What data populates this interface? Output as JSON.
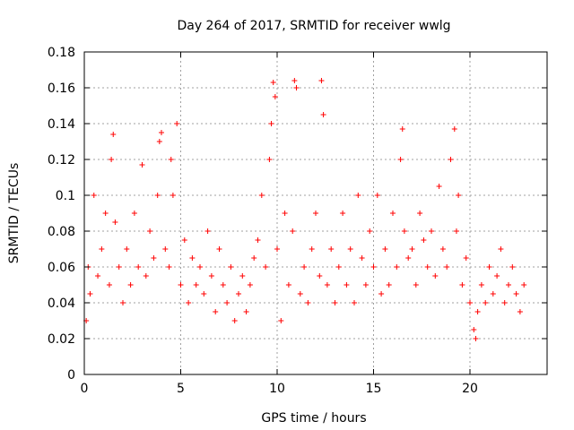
{
  "chart_data": {
    "type": "scatter",
    "title": "Day 264 of 2017, SRMTID for receiver wwlg",
    "xlabel": "GPS time / hours",
    "ylabel": "SRMTID / TECUs",
    "xlim": [
      0,
      24
    ],
    "ylim": [
      0,
      0.18
    ],
    "xticks": [
      0,
      5,
      10,
      15,
      20
    ],
    "xtick_labels": [
      "0",
      "5",
      "10",
      "15",
      "20"
    ],
    "yticks": [
      0,
      0.02,
      0.04,
      0.06,
      0.08,
      0.1,
      0.12,
      0.14,
      0.16,
      0.18
    ],
    "ytick_labels": [
      "0",
      "0.02",
      "0.04",
      "0.06",
      "0.08",
      "0.1",
      "0.12",
      "0.14",
      "0.16",
      "0.18"
    ],
    "grid": true,
    "marker": "+",
    "color": "#ff0000",
    "series": [
      {
        "name": "SRMTID",
        "x": [
          0.1,
          0.2,
          0.3,
          0.5,
          0.7,
          0.9,
          1.1,
          1.3,
          1.4,
          1.5,
          1.6,
          1.8,
          2.0,
          2.2,
          2.4,
          2.6,
          2.8,
          3.0,
          3.2,
          3.4,
          3.6,
          3.8,
          3.9,
          4.0,
          4.2,
          4.4,
          4.5,
          4.6,
          4.8,
          5.0,
          5.2,
          5.4,
          5.6,
          5.8,
          6.0,
          6.2,
          6.4,
          6.6,
          6.8,
          7.0,
          7.2,
          7.4,
          7.6,
          7.8,
          8.0,
          8.2,
          8.4,
          8.6,
          8.8,
          9.0,
          9.2,
          9.4,
          9.6,
          9.7,
          9.8,
          9.9,
          10.0,
          10.2,
          10.4,
          10.6,
          10.8,
          10.9,
          11.0,
          11.2,
          11.4,
          11.6,
          11.8,
          12.0,
          12.2,
          12.3,
          12.4,
          12.6,
          12.8,
          13.0,
          13.2,
          13.4,
          13.6,
          13.8,
          14.0,
          14.2,
          14.4,
          14.6,
          14.8,
          15.0,
          15.2,
          15.4,
          15.6,
          15.8,
          16.0,
          16.2,
          16.4,
          16.5,
          16.6,
          16.8,
          17.0,
          17.2,
          17.4,
          17.6,
          17.8,
          18.0,
          18.2,
          18.4,
          18.6,
          18.8,
          19.0,
          19.2,
          19.3,
          19.4,
          19.6,
          19.8,
          20.0,
          20.2,
          20.3,
          20.4,
          20.6,
          20.8,
          21.0,
          21.2,
          21.4,
          21.6,
          21.8,
          22.0,
          22.2,
          22.4,
          22.6,
          22.8
        ],
        "y": [
          0.03,
          0.06,
          0.045,
          0.1,
          0.055,
          0.07,
          0.09,
          0.05,
          0.12,
          0.134,
          0.085,
          0.06,
          0.04,
          0.07,
          0.05,
          0.09,
          0.06,
          0.117,
          0.055,
          0.08,
          0.065,
          0.1,
          0.13,
          0.135,
          0.07,
          0.06,
          0.12,
          0.1,
          0.14,
          0.05,
          0.075,
          0.04,
          0.065,
          0.05,
          0.06,
          0.045,
          0.08,
          0.055,
          0.035,
          0.07,
          0.05,
          0.04,
          0.06,
          0.03,
          0.045,
          0.055,
          0.035,
          0.05,
          0.065,
          0.075,
          0.1,
          0.06,
          0.12,
          0.14,
          0.163,
          0.155,
          0.07,
          0.03,
          0.09,
          0.05,
          0.08,
          0.164,
          0.16,
          0.045,
          0.06,
          0.04,
          0.07,
          0.09,
          0.055,
          0.164,
          0.145,
          0.05,
          0.07,
          0.04,
          0.06,
          0.09,
          0.05,
          0.07,
          0.04,
          0.1,
          0.065,
          0.05,
          0.08,
          0.06,
          0.1,
          0.045,
          0.07,
          0.05,
          0.09,
          0.06,
          0.12,
          0.137,
          0.08,
          0.065,
          0.07,
          0.05,
          0.09,
          0.075,
          0.06,
          0.08,
          0.055,
          0.105,
          0.07,
          0.06,
          0.12,
          0.137,
          0.08,
          0.1,
          0.05,
          0.065,
          0.04,
          0.025,
          0.02,
          0.035,
          0.05,
          0.04,
          0.06,
          0.045,
          0.055,
          0.07,
          0.04,
          0.05,
          0.06,
          0.045,
          0.035,
          0.05
        ]
      }
    ]
  }
}
